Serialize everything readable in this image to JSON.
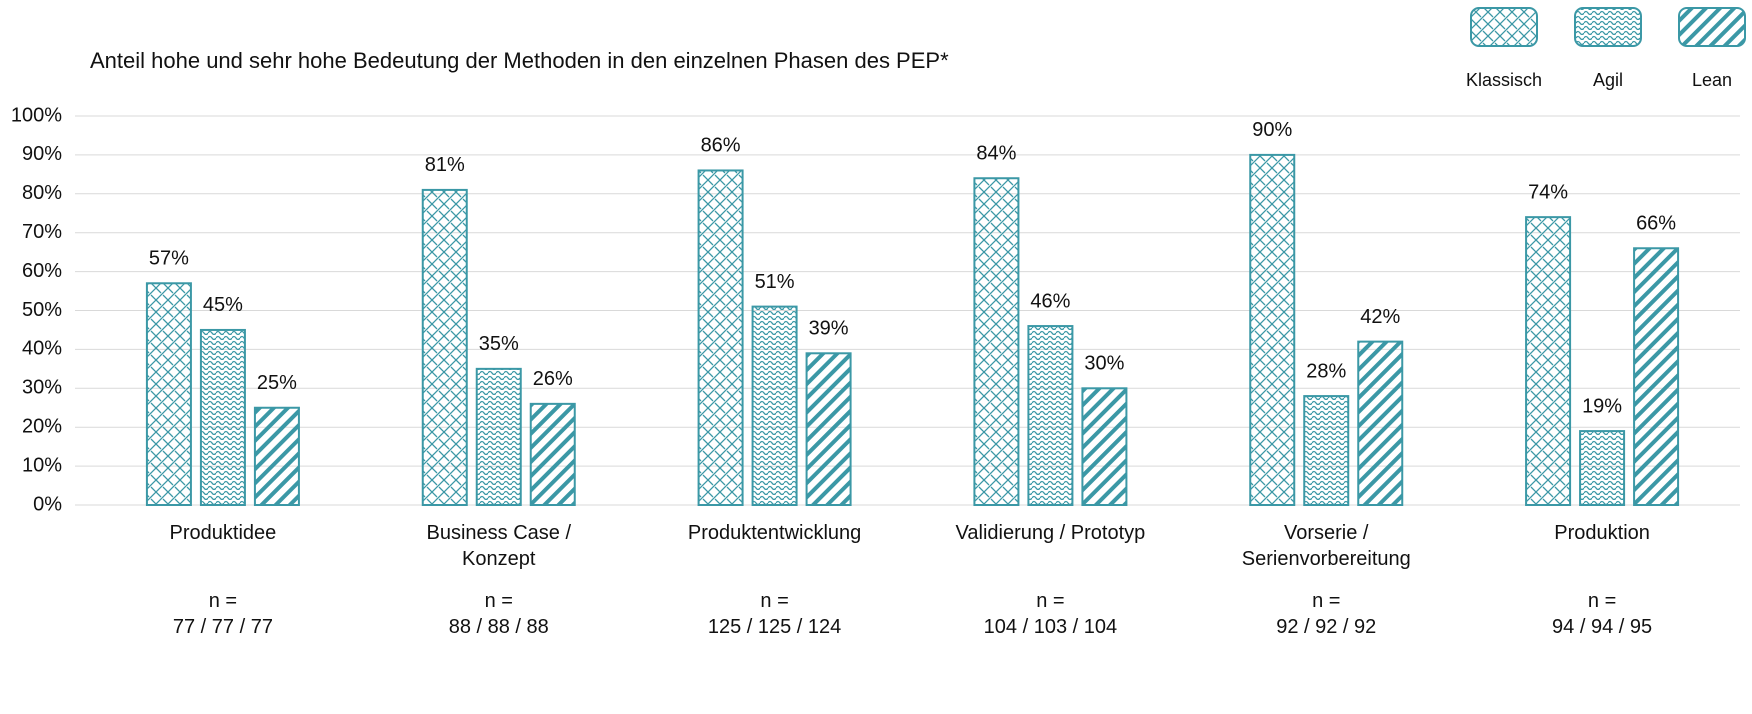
{
  "chart_data": {
    "type": "bar",
    "title": "Anteil hohe und sehr hohe Bedeutung der Methoden in den einzelnen Phasen des PEP*",
    "categories": [
      "Produktidee",
      "Business Case /\nKonzept",
      "Produktentwicklung",
      "Validierung / Prototyp",
      "Vorserie /\nSerienvorbereitung",
      "Produktion"
    ],
    "sample_sizes": [
      "n =\n77 / 77 / 77",
      "n =\n88 / 88 / 88",
      "n =\n125 / 125 / 124",
      "n =\n104 / 103 / 104",
      "n =\n92 / 92 / 92",
      "n =\n94 / 94 / 95"
    ],
    "series": [
      {
        "name": "Klassisch",
        "color": "#3b98a6",
        "values": [
          57,
          81,
          86,
          84,
          90,
          74
        ],
        "value_labels": [
          "57%",
          "81%",
          "86%",
          "84%",
          "90%",
          "74%"
        ]
      },
      {
        "name": "Agil",
        "color": "#3b98a6",
        "values": [
          45,
          35,
          51,
          46,
          28,
          19
        ],
        "value_labels": [
          "45%",
          "35%",
          "51%",
          "46%",
          "28%",
          "19%"
        ]
      },
      {
        "name": "Lean",
        "color": "#3b98a6",
        "values": [
          25,
          26,
          39,
          30,
          42,
          66
        ],
        "value_labels": [
          "25%",
          "26%",
          "39%",
          "30%",
          "42%",
          "66%"
        ]
      }
    ],
    "ylim": [
      0,
      100
    ],
    "yticks": [
      {
        "value": 0,
        "label": "0%"
      },
      {
        "value": 10,
        "label": "10%"
      },
      {
        "value": 20,
        "label": "20%"
      },
      {
        "value": 30,
        "label": "30%"
      },
      {
        "value": 40,
        "label": "40%"
      },
      {
        "value": 50,
        "label": "50%"
      },
      {
        "value": 60,
        "label": "60%"
      },
      {
        "value": 70,
        "label": "70%"
      },
      {
        "value": 80,
        "label": "80%"
      },
      {
        "value": 90,
        "label": "90%"
      },
      {
        "value": 100,
        "label": "100%"
      }
    ],
    "grid": true,
    "legend": "top-right"
  }
}
